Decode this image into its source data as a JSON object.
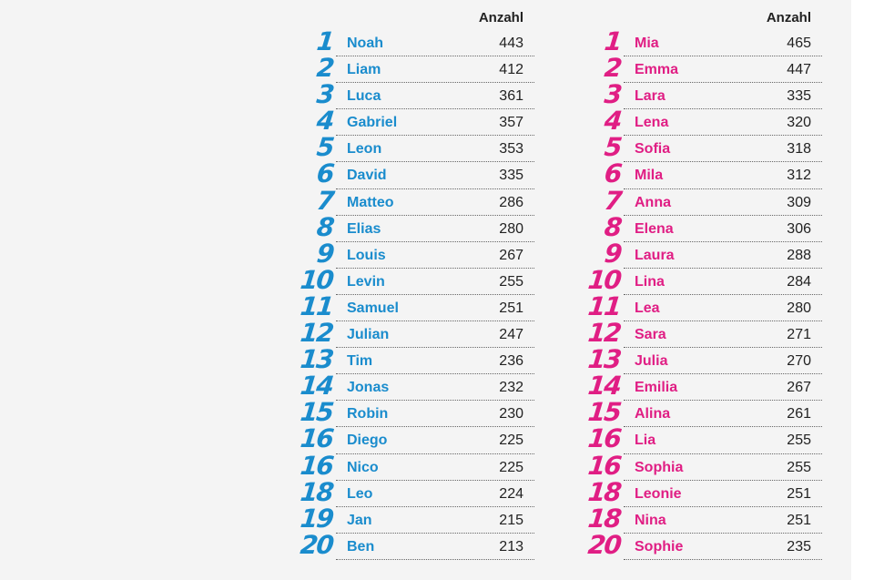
{
  "boys": {
    "count_header": "Anzahl",
    "color": "#1a8ccd",
    "rows": [
      {
        "rank": "1",
        "name": "Noah",
        "count": "443"
      },
      {
        "rank": "2",
        "name": "Liam",
        "count": "412"
      },
      {
        "rank": "3",
        "name": "Luca",
        "count": "361"
      },
      {
        "rank": "4",
        "name": "Gabriel",
        "count": "357"
      },
      {
        "rank": "5",
        "name": "Leon",
        "count": "353"
      },
      {
        "rank": "6",
        "name": "David",
        "count": "335"
      },
      {
        "rank": "7",
        "name": "Matteo",
        "count": "286"
      },
      {
        "rank": "8",
        "name": "Elias",
        "count": "280"
      },
      {
        "rank": "9",
        "name": "Louis",
        "count": "267"
      },
      {
        "rank": "10",
        "name": "Levin",
        "count": "255"
      },
      {
        "rank": "11",
        "name": "Samuel",
        "count": "251"
      },
      {
        "rank": "12",
        "name": "Julian",
        "count": "247"
      },
      {
        "rank": "13",
        "name": "Tim",
        "count": "236"
      },
      {
        "rank": "14",
        "name": "Jonas",
        "count": "232"
      },
      {
        "rank": "15",
        "name": "Robin",
        "count": "230"
      },
      {
        "rank": "16",
        "name": "Diego",
        "count": "225"
      },
      {
        "rank": "16",
        "name": "Nico",
        "count": "225"
      },
      {
        "rank": "18",
        "name": "Leo",
        "count": "224"
      },
      {
        "rank": "19",
        "name": "Jan",
        "count": "215"
      },
      {
        "rank": "20",
        "name": "Ben",
        "count": "213"
      }
    ]
  },
  "girls": {
    "count_header": "Anzahl",
    "color": "#e01e84",
    "rows": [
      {
        "rank": "1",
        "name": "Mia",
        "count": "465"
      },
      {
        "rank": "2",
        "name": "Emma",
        "count": "447"
      },
      {
        "rank": "3",
        "name": "Lara",
        "count": "335"
      },
      {
        "rank": "4",
        "name": "Lena",
        "count": "320"
      },
      {
        "rank": "5",
        "name": "Sofia",
        "count": "318"
      },
      {
        "rank": "6",
        "name": "Mila",
        "count": "312"
      },
      {
        "rank": "7",
        "name": "Anna",
        "count": "309"
      },
      {
        "rank": "8",
        "name": "Elena",
        "count": "306"
      },
      {
        "rank": "9",
        "name": "Laura",
        "count": "288"
      },
      {
        "rank": "10",
        "name": "Lina",
        "count": "284"
      },
      {
        "rank": "11",
        "name": "Lea",
        "count": "280"
      },
      {
        "rank": "12",
        "name": "Sara",
        "count": "271"
      },
      {
        "rank": "13",
        "name": "Julia",
        "count": "270"
      },
      {
        "rank": "14",
        "name": "Emilia",
        "count": "267"
      },
      {
        "rank": "15",
        "name": "Alina",
        "count": "261"
      },
      {
        "rank": "16",
        "name": "Lia",
        "count": "255"
      },
      {
        "rank": "16",
        "name": "Sophia",
        "count": "255"
      },
      {
        "rank": "18",
        "name": "Leonie",
        "count": "251"
      },
      {
        "rank": "18",
        "name": "Nina",
        "count": "251"
      },
      {
        "rank": "20",
        "name": "Sophie",
        "count": "235"
      }
    ]
  }
}
